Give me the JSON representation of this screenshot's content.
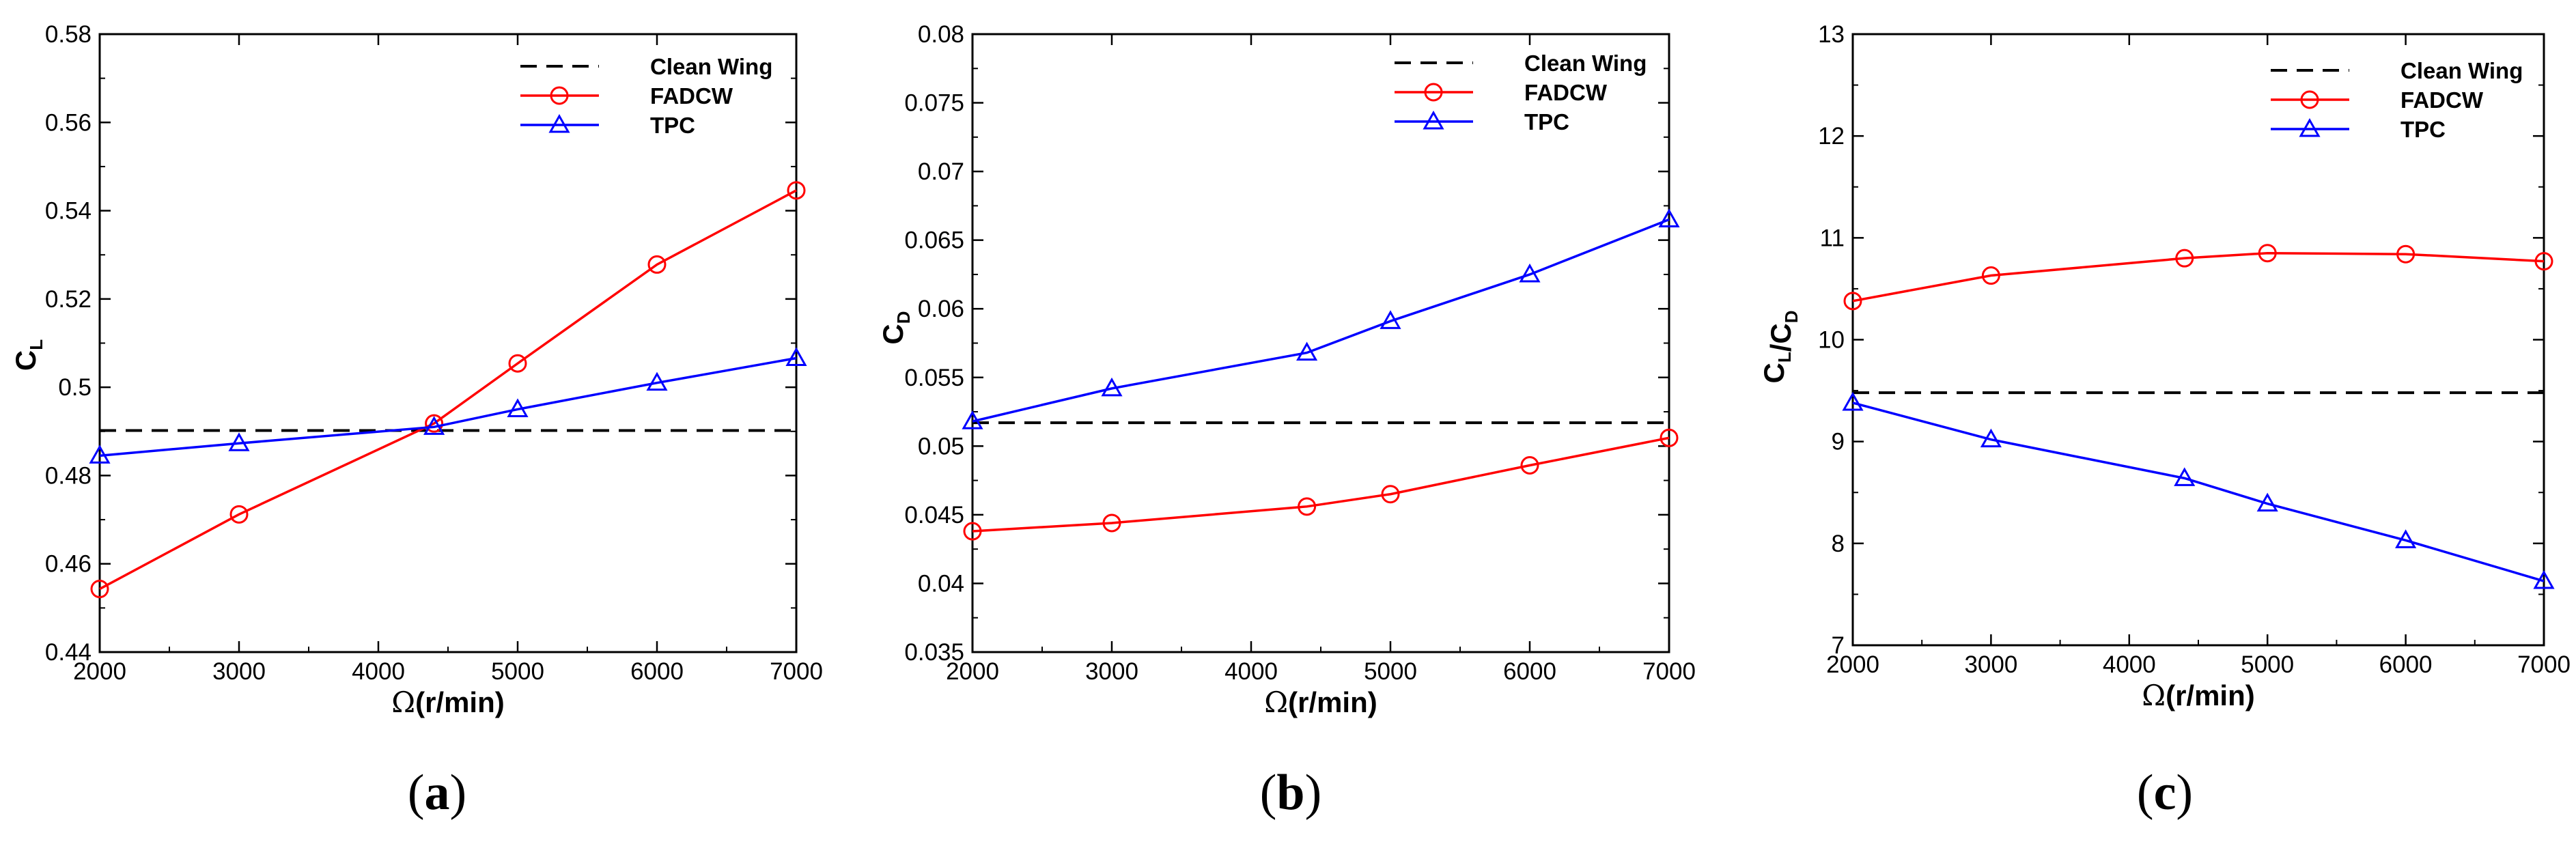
{
  "chart_data": [
    {
      "type": "line",
      "panel_label": "a",
      "x": [
        2000,
        3000,
        4400,
        5000,
        6000,
        7000
      ],
      "xlabel": "Ω(r/min)",
      "xlabel_symbol": "Ω",
      "xlabel_unit": "(r/min)",
      "ylabel": "C_L",
      "ylabel_parts": [
        {
          "text": "C",
          "sub": "L"
        }
      ],
      "xlim": [
        2000,
        7000
      ],
      "ylim": [
        0.44,
        0.58
      ],
      "xticks": [
        2000,
        3000,
        4000,
        5000,
        6000,
        7000
      ],
      "xtick_labels": [
        "2000",
        "3000",
        "4000",
        "5000",
        "6000",
        "7000"
      ],
      "yticks": [
        0.44,
        0.46,
        0.48,
        0.5,
        0.52,
        0.54,
        0.56,
        0.58
      ],
      "ytick_labels": [
        "0.44",
        "0.46",
        "0.48",
        "0.5",
        "0.52",
        "0.54",
        "0.56",
        "0.58"
      ],
      "legend_position": "top-right",
      "series": [
        {
          "name": "Clean Wing",
          "style": "dashed",
          "marker": "none",
          "color": "#000000",
          "values": [
            0.4902,
            0.4902,
            0.4902,
            0.4902,
            0.4902,
            0.4902
          ]
        },
        {
          "name": "FADCW",
          "style": "solid",
          "marker": "circle",
          "color": "#ff0000",
          "values": [
            0.4543,
            0.4712,
            0.4918,
            0.5054,
            0.5278,
            0.5446
          ]
        },
        {
          "name": "TPC",
          "style": "solid",
          "marker": "triangle",
          "color": "#0000ff",
          "values": [
            0.4845,
            0.4873,
            0.491,
            0.495,
            0.501,
            0.5066
          ]
        }
      ]
    },
    {
      "type": "line",
      "panel_label": "b",
      "x": [
        2000,
        3000,
        4400,
        5000,
        6000,
        7000
      ],
      "xlabel": "Ω(r/min)",
      "xlabel_symbol": "Ω",
      "xlabel_unit": "(r/min)",
      "ylabel": "C_D",
      "ylabel_parts": [
        {
          "text": "C",
          "sub": "D"
        }
      ],
      "xlim": [
        2000,
        7000
      ],
      "ylim": [
        0.035,
        0.08
      ],
      "xticks": [
        2000,
        3000,
        4000,
        5000,
        6000,
        7000
      ],
      "xtick_labels": [
        "2000",
        "3000",
        "4000",
        "5000",
        "6000",
        "7000"
      ],
      "yticks": [
        0.035,
        0.04,
        0.045,
        0.05,
        0.055,
        0.06,
        0.065,
        0.07,
        0.075,
        0.08
      ],
      "ytick_labels": [
        "0.035",
        "0.04",
        "0.045",
        "0.05",
        "0.055",
        "0.06",
        "0.065",
        "0.07",
        "0.075",
        "0.08"
      ],
      "legend_position": "top-right",
      "series": [
        {
          "name": "Clean Wing",
          "style": "dashed",
          "marker": "none",
          "color": "#000000",
          "values": [
            0.0517,
            0.0517,
            0.0517,
            0.0517,
            0.0517,
            0.0517
          ]
        },
        {
          "name": "FADCW",
          "style": "solid",
          "marker": "circle",
          "color": "#ff0000",
          "values": [
            0.0438,
            0.0444,
            0.0456,
            0.0465,
            0.0486,
            0.0506
          ]
        },
        {
          "name": "TPC",
          "style": "solid",
          "marker": "triangle",
          "color": "#0000ff",
          "values": [
            0.0518,
            0.0542,
            0.0568,
            0.0591,
            0.0625,
            0.0665
          ]
        }
      ]
    },
    {
      "type": "line",
      "panel_label": "c",
      "x": [
        2000,
        3000,
        4400,
        5000,
        6000,
        7000
      ],
      "xlabel": "Ω(r/min)",
      "xlabel_symbol": "Ω",
      "xlabel_unit": "(r/min)",
      "ylabel": "C_L/C_D",
      "ylabel_parts": [
        {
          "text": "C",
          "sub": "L"
        },
        {
          "text": "/C",
          "sub": "D"
        }
      ],
      "xlim": [
        2000,
        7000
      ],
      "ylim": [
        7,
        13
      ],
      "xticks": [
        2000,
        3000,
        4000,
        5000,
        6000,
        7000
      ],
      "xtick_labels": [
        "2000",
        "3000",
        "4000",
        "5000",
        "6000",
        "7000"
      ],
      "yticks": [
        7,
        8,
        9,
        10,
        11,
        12,
        13
      ],
      "ytick_labels": [
        "7",
        "8",
        "9",
        "10",
        "11",
        "12",
        "13"
      ],
      "legend_position": "top-right",
      "series": [
        {
          "name": "Clean Wing",
          "style": "dashed",
          "marker": "none",
          "color": "#000000",
          "values": [
            9.48,
            9.48,
            9.48,
            9.48,
            9.48,
            9.48
          ]
        },
        {
          "name": "FADCW",
          "style": "solid",
          "marker": "circle",
          "color": "#ff0000",
          "values": [
            10.38,
            10.63,
            10.8,
            10.85,
            10.84,
            10.77
          ]
        },
        {
          "name": "TPC",
          "style": "solid",
          "marker": "triangle",
          "color": "#0000ff",
          "values": [
            9.38,
            9.02,
            8.64,
            8.39,
            8.03,
            7.63
          ]
        }
      ]
    }
  ]
}
